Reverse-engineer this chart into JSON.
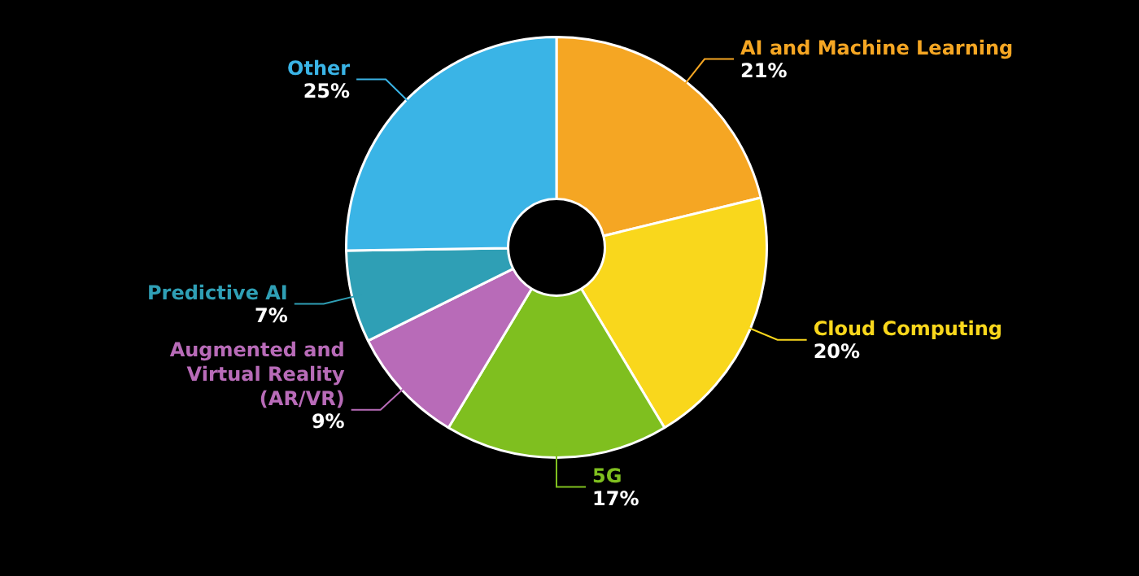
{
  "chart_data": {
    "type": "donut",
    "categories": [
      "AI and Machine Learning",
      "Cloud Computing",
      "5G",
      "Augmented and Virtual Reality (AR/VR)",
      "Predictive AI",
      "Other"
    ],
    "values": [
      21,
      20,
      17,
      9,
      7,
      25
    ],
    "colors": [
      "#f5a623",
      "#f9d71c",
      "#7fbf1f",
      "#b86bb8",
      "#2f9fb5",
      "#3ab4e6"
    ],
    "value_labels": [
      "21%",
      "20%",
      "17%",
      "9%",
      "7%",
      "25%"
    ],
    "legend": false
  }
}
